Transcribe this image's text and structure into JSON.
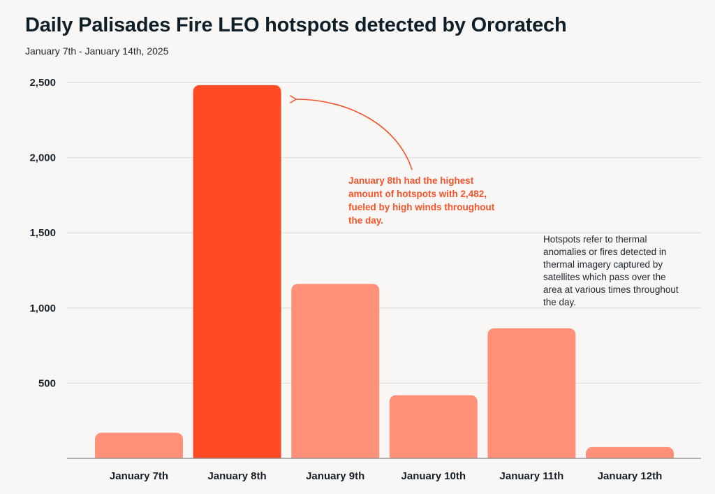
{
  "chart_data": {
    "type": "bar",
    "title": "Daily Palisades Fire LEO hotspots detected by Ororatech",
    "subtitle": "January 7th - January 14th, 2025",
    "categories": [
      "January 7th",
      "January 8th",
      "January 9th",
      "January 10th",
      "January 11th",
      "January 12th"
    ],
    "values": [
      170,
      2482,
      1160,
      420,
      865,
      75
    ],
    "highlight_index": 1,
    "ylim": [
      0,
      2500
    ],
    "yticks": [
      500,
      1000,
      1500,
      2000,
      2500
    ],
    "ytick_labels": [
      "500",
      "1,000",
      "1,500",
      "2,000",
      "2,500"
    ],
    "grid": true,
    "xlabel": "",
    "ylabel": "",
    "colors": {
      "bar": "#ff917b",
      "highlight": "#ff4925",
      "annotation": "#f4532b",
      "grid": "#dcdad7",
      "axis": "#8a8a8a"
    },
    "annotations": {
      "highlight_text": "January 8th had the highest amount of hotspots with 2,482, fueled by high winds throughout the day.",
      "note_text": "Hotspots refer to thermal anomalies or fires detected in thermal imagery captured by satellites which pass over the area at various times throughout the day."
    }
  }
}
